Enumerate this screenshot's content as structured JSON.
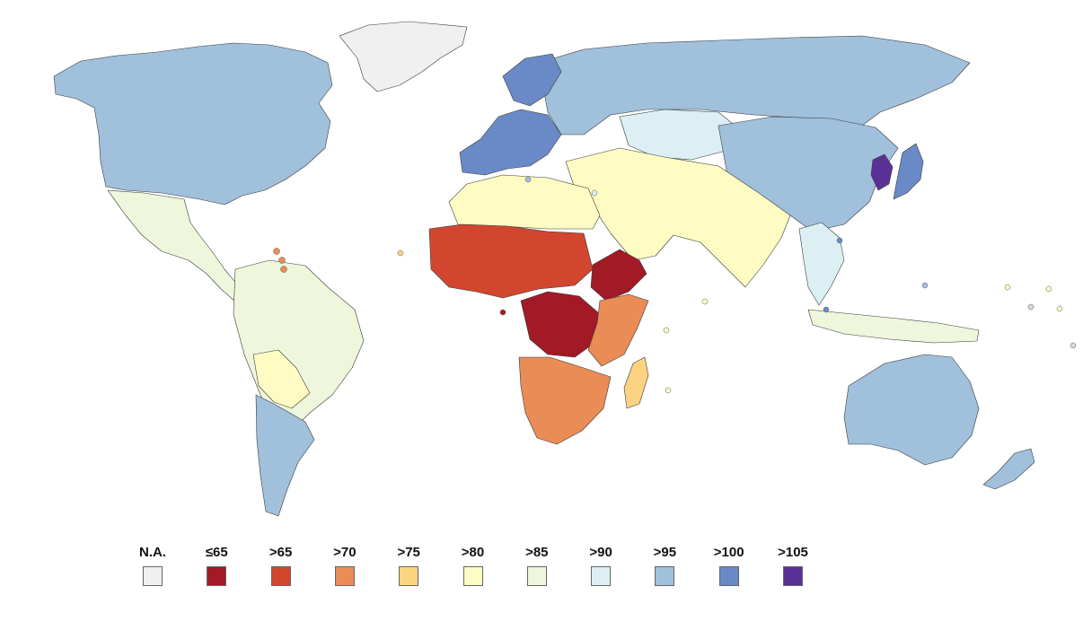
{
  "legend": {
    "items": [
      {
        "label": "N.A.",
        "color": "#f0f0f0"
      },
      {
        "label": "≤65",
        "color": "#a11a26"
      },
      {
        "label": ">65",
        "color": "#d2462f"
      },
      {
        "label": ">70",
        "color": "#ea8c55"
      },
      {
        "label": ">75",
        "color": "#fbd381"
      },
      {
        "label": ">80",
        "color": "#fefcc2"
      },
      {
        "label": ">85",
        "color": "#eef7dc"
      },
      {
        "label": ">90",
        "color": "#dcf0f4"
      },
      {
        "label": ">95",
        "color": "#a0c0dc"
      },
      {
        "label": ">100",
        "color": "#6a8ac7"
      },
      {
        "label": ">105",
        "color": "#5a2f96"
      }
    ]
  },
  "regions": [
    {
      "id": "greenland",
      "class": "N.A."
    },
    {
      "id": "north-america",
      "class": ">95"
    },
    {
      "id": "mexico-central-america",
      "class": ">85"
    },
    {
      "id": "south-america",
      "class": ">85"
    },
    {
      "id": "argentina-chile",
      "class": ">95"
    },
    {
      "id": "bolivia",
      "class": ">80"
    },
    {
      "id": "russia-north-asia",
      "class": ">95"
    },
    {
      "id": "china-east-asia",
      "class": ">95"
    },
    {
      "id": "kazakhstan",
      "class": ">90"
    },
    {
      "id": "korea",
      "class": ">105"
    },
    {
      "id": "japan",
      "class": ">100"
    },
    {
      "id": "western-europe",
      "class": ">100"
    },
    {
      "id": "scandinavia",
      "class": ">100"
    },
    {
      "id": "middle-east-south-asia",
      "class": ">80"
    },
    {
      "id": "north-africa",
      "class": ">80"
    },
    {
      "id": "west-africa",
      "class": ">65"
    },
    {
      "id": "central-africa",
      "class": "≤65"
    },
    {
      "id": "horn-of-africa",
      "class": "≤65"
    },
    {
      "id": "east-africa",
      "class": ">70"
    },
    {
      "id": "southern-africa",
      "class": ">70"
    },
    {
      "id": "madagascar",
      "class": ">75"
    },
    {
      "id": "southeast-asia",
      "class": ">90"
    },
    {
      "id": "indonesia",
      "class": ">85"
    },
    {
      "id": "australia",
      "class": ">95"
    },
    {
      "id": "new-zealand",
      "class": ">95"
    }
  ]
}
